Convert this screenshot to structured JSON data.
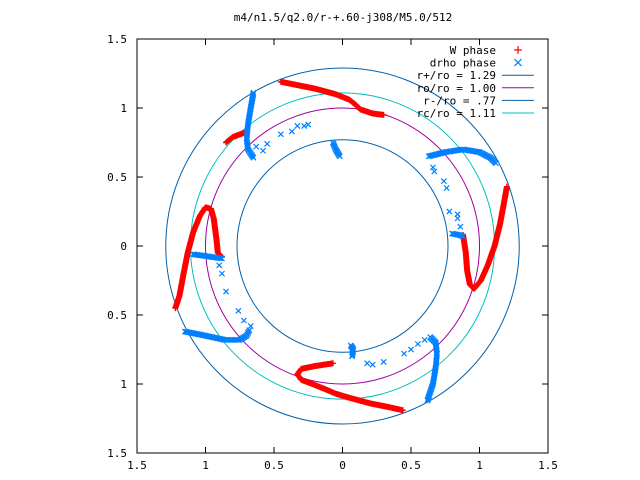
{
  "chart_data": {
    "type": "scatter",
    "title": "m4/n1.5/q2.0/r-+.60-j308/M5.0/512",
    "xlabel": "",
    "ylabel": "",
    "xlim": [
      -1.5,
      1.5
    ],
    "ylim": [
      -1.5,
      1.5
    ],
    "x_ticks": [
      -1.5,
      -1,
      -0.5,
      0,
      0.5,
      1,
      1.5
    ],
    "y_ticks": [
      -1.5,
      -1,
      -0.5,
      0,
      0.5,
      1,
      1.5
    ],
    "x_tick_labels": [
      "1.5",
      "1",
      "0.5",
      "0",
      "0.5",
      "1",
      "1.5"
    ],
    "y_tick_labels": [
      "1.5",
      "1",
      "0.5",
      "0",
      "0.5",
      "1",
      "1.5"
    ],
    "grid": false,
    "legend_position": "top-right",
    "series": [
      {
        "name": "W phase",
        "marker": "plus",
        "color": "#ff0000",
        "arms": [
          [
            [
              -0.45,
              1.19
            ],
            [
              -0.35,
              1.17
            ],
            [
              -0.2,
              1.14
            ],
            [
              -0.05,
              1.1
            ],
            [
              0.05,
              1.06
            ],
            [
              0.1,
              1.02
            ],
            [
              0.13,
              0.99
            ],
            [
              0.22,
              0.96
            ],
            [
              0.3,
              0.95
            ]
          ],
          [
            [
              -0.72,
              0.82
            ],
            [
              -0.8,
              0.79
            ],
            [
              -0.85,
              0.75
            ]
          ],
          [
            [
              -1.22,
              -0.45
            ],
            [
              -1.19,
              -0.36
            ],
            [
              -1.16,
              -0.2
            ],
            [
              -1.13,
              -0.05
            ],
            [
              -1.09,
              0.1
            ],
            [
              -1.04,
              0.22
            ],
            [
              -1.0,
              0.28
            ],
            [
              -0.96,
              0.27
            ],
            [
              -0.94,
              0.2
            ],
            [
              -0.92,
              0.05
            ],
            [
              -0.91,
              -0.05
            ],
            [
              -0.88,
              -0.08
            ]
          ],
          [
            [
              0.44,
              -1.19
            ],
            [
              0.35,
              -1.17
            ],
            [
              0.2,
              -1.14
            ],
            [
              0.05,
              -1.1
            ],
            [
              -0.05,
              -1.07
            ],
            [
              -0.12,
              -1.04
            ],
            [
              -0.22,
              -1.0
            ],
            [
              -0.3,
              -0.97
            ],
            [
              -0.33,
              -0.93
            ],
            [
              -0.3,
              -0.89
            ],
            [
              -0.2,
              -0.87
            ],
            [
              -0.07,
              -0.85
            ]
          ],
          [
            [
              1.2,
              0.43
            ],
            [
              1.18,
              0.32
            ],
            [
              1.15,
              0.16
            ],
            [
              1.11,
              0.0
            ],
            [
              1.06,
              -0.14
            ],
            [
              1.01,
              -0.25
            ],
            [
              0.96,
              -0.31
            ],
            [
              0.93,
              -0.28
            ],
            [
              0.91,
              -0.18
            ],
            [
              0.9,
              -0.05
            ],
            [
              0.88,
              0.08
            ]
          ]
        ]
      },
      {
        "name": "drho phase",
        "marker": "cross",
        "color": "#0080ff",
        "arms": [
          [
            [
              -0.65,
              1.11
            ],
            [
              -0.67,
              1.0
            ],
            [
              -0.69,
              0.88
            ],
            [
              -0.7,
              0.78
            ],
            [
              -0.69,
              0.7
            ],
            [
              -0.65,
              0.64
            ]
          ],
          [
            [
              -0.07,
              0.75
            ],
            [
              -0.05,
              0.7
            ],
            [
              -0.02,
              0.65
            ]
          ],
          [
            [
              -1.15,
              -0.62
            ],
            [
              -1.0,
              -0.65
            ],
            [
              -0.86,
              -0.68
            ],
            [
              -0.75,
              -0.68
            ],
            [
              -0.7,
              -0.65
            ],
            [
              -0.68,
              -0.61
            ]
          ],
          [
            [
              -1.09,
              -0.06
            ],
            [
              -1.02,
              -0.07
            ],
            [
              -0.95,
              -0.08
            ],
            [
              -0.88,
              -0.09
            ]
          ],
          [
            [
              0.62,
              -1.12
            ],
            [
              0.66,
              -1.0
            ],
            [
              0.68,
              -0.88
            ],
            [
              0.69,
              -0.78
            ],
            [
              0.68,
              -0.7
            ],
            [
              0.64,
              -0.66
            ]
          ],
          [
            [
              0.07,
              -0.8
            ],
            [
              0.08,
              -0.75
            ],
            [
              0.06,
              -0.72
            ]
          ],
          [
            [
              0.63,
              0.65
            ],
            [
              0.75,
              0.68
            ],
            [
              0.88,
              0.7
            ],
            [
              1.0,
              0.68
            ],
            [
              1.08,
              0.64
            ],
            [
              1.12,
              0.6
            ]
          ],
          [
            [
              0.8,
              0.09
            ],
            [
              0.85,
              0.08
            ],
            [
              0.88,
              0.07
            ]
          ],
          [
            [
              -0.63,
              0.72
            ],
            [
              -0.58,
              0.69
            ],
            [
              -0.55,
              0.74
            ],
            [
              -0.45,
              0.81
            ],
            [
              -0.37,
              0.83
            ],
            [
              -0.33,
              0.87
            ],
            [
              -0.28,
              0.87
            ],
            [
              -0.25,
              0.88
            ],
            [
              0.66,
              0.57
            ],
            [
              0.67,
              0.54
            ],
            [
              0.74,
              0.47
            ],
            [
              0.76,
              0.42
            ],
            [
              0.84,
              0.2
            ],
            [
              0.86,
              0.14
            ],
            [
              0.84,
              0.23
            ],
            [
              0.78,
              0.25
            ],
            [
              -0.9,
              -0.14
            ],
            [
              -0.88,
              -0.2
            ],
            [
              -0.85,
              -0.33
            ],
            [
              -0.76,
              -0.47
            ],
            [
              -0.72,
              -0.54
            ],
            [
              -0.67,
              -0.58
            ],
            [
              0.18,
              -0.85
            ],
            [
              0.22,
              -0.86
            ],
            [
              0.3,
              -0.84
            ],
            [
              0.45,
              -0.78
            ],
            [
              0.5,
              -0.75
            ],
            [
              0.55,
              -0.71
            ],
            [
              0.6,
              -0.68
            ]
          ]
        ]
      }
    ],
    "circles": [
      {
        "name": "r+/ro = 1.29",
        "r": 1.29,
        "color": "#0060ad"
      },
      {
        "name": "ro/ro = 1.00",
        "r": 1.0,
        "color": "#a000a0"
      },
      {
        "name": "r-/ro = .77",
        "r": 0.77,
        "color": "#0060ad"
      },
      {
        "name": "rc/ro = 1.11",
        "r": 1.11,
        "color": "#00c0c0"
      }
    ]
  }
}
